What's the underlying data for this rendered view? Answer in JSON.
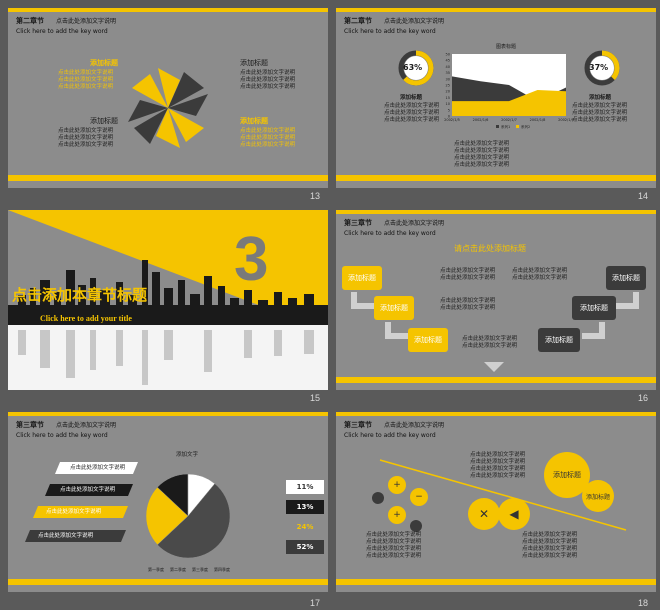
{
  "common": {
    "key_word": "Click here to  add the key word",
    "sub_title": "点击此处添加文字说明",
    "text_line": "点击此处添加文字说明"
  },
  "slide13": {
    "number": "13",
    "section": "第二章节",
    "title_yellow": "添加标题",
    "title_gray": "添加标题",
    "title_gray2": "添加标题",
    "title_yellow2": "添加标题"
  },
  "slide14": {
    "number": "14",
    "section": "第二章节",
    "chart_title": "图表标题",
    "left_pct": "63%",
    "right_pct": "37%",
    "left_title": "添加标题",
    "right_title": "添加标题",
    "legend1": "系列1",
    "legend2": "系列2",
    "xticks": [
      "2002/1/5",
      "2002/1/6",
      "2002/1/7",
      "2002/1/8",
      "2002/1/9"
    ],
    "yticks": [
      "0",
      "5",
      "10",
      "15",
      "20",
      "25",
      "30",
      "35",
      "40",
      "45",
      "50"
    ]
  },
  "slide15": {
    "number": "15",
    "digit": "3",
    "title": "点击添加本章节标题",
    "subtitle": "Click  here to add your title"
  },
  "slide16": {
    "number": "16",
    "section": "第三章节",
    "heading": "请点击此处添加标题",
    "box": "添加标题"
  },
  "slide17": {
    "number": "17",
    "section": "第三章节",
    "pie_label": "添加文字",
    "banner": "点击此处添加文字说明",
    "percents": [
      "11%",
      "13%",
      "24%",
      "52%"
    ],
    "legend": [
      "第一季度",
      "第二季度",
      "第三季度",
      "第四季度"
    ]
  },
  "slide18": {
    "number": "18",
    "section": "第三章节",
    "title1": "添加标题",
    "title2": "添加标题"
  },
  "chart_data": [
    {
      "type": "area",
      "title": "图表标题",
      "x": [
        "2002/1/5",
        "2002/1/6",
        "2002/1/7",
        "2002/1/8",
        "2002/1/9"
      ],
      "series": [
        {
          "name": "系列1",
          "values": [
            32,
            28,
            25,
            12,
            23
          ]
        },
        {
          "name": "系列2",
          "values": [
            12,
            12,
            12,
            21,
            20
          ]
        }
      ],
      "ylim": [
        0,
        50
      ]
    },
    {
      "type": "pie",
      "title": "添加文字",
      "categories": [
        "第一季度",
        "第二季度",
        "第三季度",
        "第四季度"
      ],
      "values": [
        52,
        24,
        13,
        11
      ]
    }
  ],
  "colors": {
    "accent": "#f5c400",
    "bg": "#8c8c8c",
    "dark": "#3b3b3b"
  }
}
